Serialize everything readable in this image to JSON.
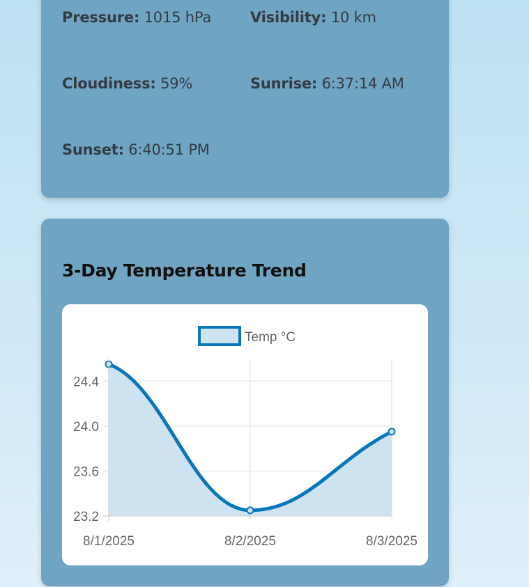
{
  "details": {
    "pressure": {
      "label": "Pressure:",
      "value": "1015 hPa"
    },
    "visibility": {
      "label": "Visibility:",
      "value": "10 km"
    },
    "cloudiness": {
      "label": "Cloudiness:",
      "value": "59%"
    },
    "sunrise": {
      "label": "Sunrise:",
      "value": "6:37:14 AM"
    },
    "sunset": {
      "label": "Sunset:",
      "value": "6:40:51 PM"
    }
  },
  "chart_section": {
    "title": "3-Day Temperature Trend"
  },
  "chart_data": {
    "type": "line",
    "categories": [
      "8/1/2025",
      "8/2/2025",
      "8/3/2025"
    ],
    "series": [
      {
        "name": "Temp °C",
        "values": [
          24.55,
          23.25,
          23.95
        ]
      }
    ],
    "y_ticks": [
      "23.2",
      "23.6",
      "24.0",
      "24.4"
    ],
    "ylim": [
      23.2,
      24.6
    ],
    "fill": true,
    "smooth": true,
    "grid": true,
    "legend_position": "top",
    "colors": {
      "line": "#0a77ba",
      "fill": "#cde3ef",
      "grid": "#e5e5e5"
    }
  }
}
